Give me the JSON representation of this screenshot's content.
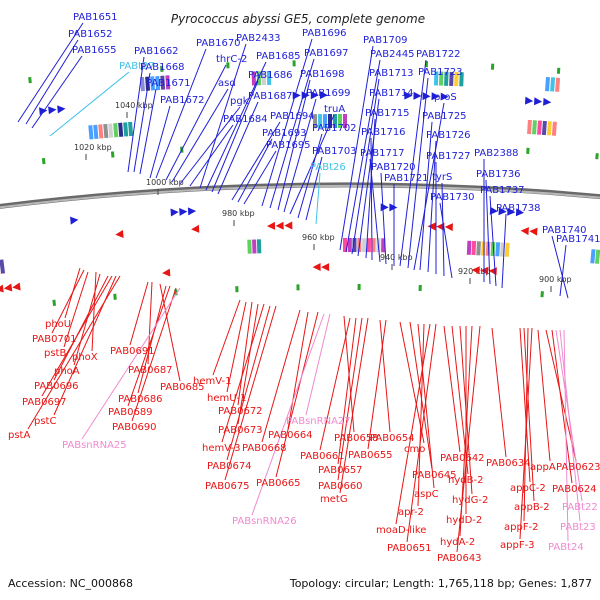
{
  "title": "Pyrococcus abyssi GE5, complete genome",
  "accession": "Accession: NC_000868",
  "summary": "Topology: circular; Length: 1,765,118 bp; Genes: 1,877",
  "colors": {
    "forward": "#1f1fd6",
    "reverse": "#e81515",
    "trna": "#3fc3e8",
    "rrna": "#f08ad0",
    "backbone": "#8a8a8a",
    "tick": "#2aa52a"
  },
  "ruler": [
    "1040 kbp",
    "1020 kbp",
    "1000 kbp",
    "980 kbp",
    "960 kbp",
    "940 kbp",
    "920 kbp",
    "900 kbp"
  ],
  "top_labels": [
    {
      "text": "PAB1651",
      "kind": "forward"
    },
    {
      "text": "PAB1652",
      "kind": "forward"
    },
    {
      "text": "PAB1655",
      "kind": "forward"
    },
    {
      "text": "PABt27",
      "kind": "trna"
    },
    {
      "text": "PAB1662",
      "kind": "forward"
    },
    {
      "text": "PAB1668",
      "kind": "forward"
    },
    {
      "text": "PAB1671",
      "kind": "forward"
    },
    {
      "text": "PAB1672",
      "kind": "forward"
    },
    {
      "text": "PAB1670",
      "kind": "forward"
    },
    {
      "text": "thrC-2",
      "kind": "forward"
    },
    {
      "text": "asd",
      "kind": "forward"
    },
    {
      "text": "pgk",
      "kind": "forward"
    },
    {
      "text": "PAB1684",
      "kind": "forward"
    },
    {
      "text": "PAB2433",
      "kind": "forward"
    },
    {
      "text": "PAB1685",
      "kind": "forward"
    },
    {
      "text": "PAB1686",
      "kind": "forward"
    },
    {
      "text": "PAB1687",
      "kind": "forward"
    },
    {
      "text": "PAB1694",
      "kind": "forward"
    },
    {
      "text": "PAB1693",
      "kind": "forward"
    },
    {
      "text": "PAB1695",
      "kind": "forward"
    },
    {
      "text": "PAB1696",
      "kind": "forward"
    },
    {
      "text": "PAB1697",
      "kind": "forward"
    },
    {
      "text": "PAB1698",
      "kind": "forward"
    },
    {
      "text": "PAB1699",
      "kind": "forward"
    },
    {
      "text": "truA",
      "kind": "forward"
    },
    {
      "text": "PAB1702",
      "kind": "forward"
    },
    {
      "text": "PAB1703",
      "kind": "forward"
    },
    {
      "text": "PABt26",
      "kind": "trna"
    },
    {
      "text": "PAB1709",
      "kind": "forward"
    },
    {
      "text": "PAB2445",
      "kind": "forward"
    },
    {
      "text": "PAB1713",
      "kind": "forward"
    },
    {
      "text": "PAB1714",
      "kind": "forward"
    },
    {
      "text": "PAB1715",
      "kind": "forward"
    },
    {
      "text": "PAB1716",
      "kind": "forward"
    },
    {
      "text": "PAB1717",
      "kind": "forward"
    },
    {
      "text": "PAB1720",
      "kind": "forward"
    },
    {
      "text": "PAB1721",
      "kind": "forward"
    },
    {
      "text": "PAB1722",
      "kind": "forward"
    },
    {
      "text": "PAB1723",
      "kind": "forward"
    },
    {
      "text": "proS",
      "kind": "forward"
    },
    {
      "text": "PAB1725",
      "kind": "forward"
    },
    {
      "text": "PAB1726",
      "kind": "forward"
    },
    {
      "text": "PAB1727",
      "kind": "forward"
    },
    {
      "text": "tyrS",
      "kind": "forward"
    },
    {
      "text": "PAB1730",
      "kind": "forward"
    },
    {
      "text": "PAB2388",
      "kind": "forward"
    },
    {
      "text": "PAB1736",
      "kind": "forward"
    },
    {
      "text": "PAB1737",
      "kind": "forward"
    },
    {
      "text": "PAB1738",
      "kind": "forward"
    },
    {
      "text": "PAB1741",
      "kind": "forward"
    },
    {
      "text": "PAB1740",
      "kind": "forward"
    }
  ],
  "bottom_labels": [
    {
      "text": "phoU",
      "kind": "reverse"
    },
    {
      "text": "PAB0701",
      "kind": "reverse"
    },
    {
      "text": "pstB",
      "kind": "reverse"
    },
    {
      "text": "phoX",
      "kind": "reverse"
    },
    {
      "text": "phoA",
      "kind": "reverse"
    },
    {
      "text": "PAB0696",
      "kind": "reverse"
    },
    {
      "text": "PAB0697",
      "kind": "reverse"
    },
    {
      "text": "pstC",
      "kind": "reverse"
    },
    {
      "text": "pstA",
      "kind": "reverse"
    },
    {
      "text": "PAB0691",
      "kind": "reverse"
    },
    {
      "text": "PAB0687",
      "kind": "reverse"
    },
    {
      "text": "PAB0685",
      "kind": "reverse"
    },
    {
      "text": "PAB0686",
      "kind": "reverse"
    },
    {
      "text": "PAB0689",
      "kind": "reverse"
    },
    {
      "text": "PAB0690",
      "kind": "reverse"
    },
    {
      "text": "PABsnRNA25",
      "kind": "rrna"
    },
    {
      "text": "hemV-1",
      "kind": "reverse"
    },
    {
      "text": "hemU-1",
      "kind": "reverse"
    },
    {
      "text": "PAB0672",
      "kind": "reverse"
    },
    {
      "text": "PAB0673",
      "kind": "reverse"
    },
    {
      "text": "hemV-3",
      "kind": "reverse"
    },
    {
      "text": "PAB0674",
      "kind": "reverse"
    },
    {
      "text": "PAB0675",
      "kind": "reverse"
    },
    {
      "text": "PAB0668",
      "kind": "reverse"
    },
    {
      "text": "PAB0664",
      "kind": "reverse"
    },
    {
      "text": "PAB0665",
      "kind": "reverse"
    },
    {
      "text": "PABsnRNA26",
      "kind": "rrna"
    },
    {
      "text": "PABsnRNA27",
      "kind": "rrna"
    },
    {
      "text": "PAB0658",
      "kind": "reverse"
    },
    {
      "text": "PAB0661",
      "kind": "reverse"
    },
    {
      "text": "PAB0657",
      "kind": "reverse"
    },
    {
      "text": "PAB0660",
      "kind": "reverse"
    },
    {
      "text": "metG",
      "kind": "reverse"
    },
    {
      "text": "PAB0654",
      "kind": "reverse"
    },
    {
      "text": "PAB0655",
      "kind": "reverse"
    },
    {
      "text": "cmo",
      "kind": "reverse"
    },
    {
      "text": "PAB0645",
      "kind": "reverse"
    },
    {
      "text": "aspC",
      "kind": "reverse"
    },
    {
      "text": "apr-2",
      "kind": "reverse"
    },
    {
      "text": "moaD-like",
      "kind": "reverse"
    },
    {
      "text": "PAB0651",
      "kind": "reverse"
    },
    {
      "text": "PAB0642",
      "kind": "reverse"
    },
    {
      "text": "hydB-2",
      "kind": "reverse"
    },
    {
      "text": "hydG-2",
      "kind": "reverse"
    },
    {
      "text": "hydD-2",
      "kind": "reverse"
    },
    {
      "text": "hydA-2",
      "kind": "reverse"
    },
    {
      "text": "PAB0643",
      "kind": "reverse"
    },
    {
      "text": "PAB0634",
      "kind": "reverse"
    },
    {
      "text": "appC-2",
      "kind": "reverse"
    },
    {
      "text": "appB-2",
      "kind": "reverse"
    },
    {
      "text": "appF-2",
      "kind": "reverse"
    },
    {
      "text": "appF-3",
      "kind": "reverse"
    },
    {
      "text": "appA",
      "kind": "reverse"
    },
    {
      "text": "PAB0623",
      "kind": "reverse"
    },
    {
      "text": "PAB0624",
      "kind": "reverse"
    },
    {
      "text": "PABt22",
      "kind": "rrna"
    },
    {
      "text": "PABt23",
      "kind": "rrna"
    },
    {
      "text": "PABt24",
      "kind": "rrna"
    }
  ]
}
